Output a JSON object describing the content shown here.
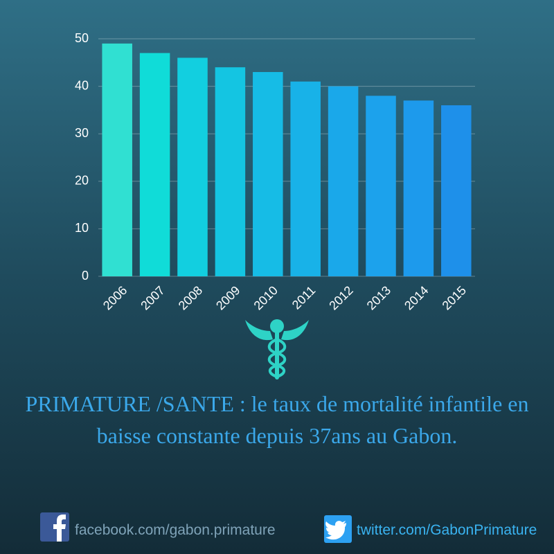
{
  "chart_data": {
    "type": "bar",
    "categories": [
      "2006",
      "2007",
      "2008",
      "2009",
      "2010",
      "2011",
      "2012",
      "2013",
      "2014",
      "2015"
    ],
    "values": [
      49,
      47,
      46,
      44,
      43,
      41,
      40,
      38,
      37,
      36
    ],
    "colors": [
      "#30e0d2",
      "#10dcd8",
      "#12cfe0",
      "#14c5e2",
      "#16bce6",
      "#18b2e8",
      "#1aa8ea",
      "#1ca2ec",
      "#1d9aec",
      "#1e90ea"
    ],
    "ylim": [
      0,
      50
    ],
    "yticks": [
      0,
      10,
      20,
      30,
      40,
      50
    ],
    "grid": true
  },
  "caption": "PRIMATURE /SANTE : le taux de mortalité infantile en baisse constante depuis 37ans au Gabon.",
  "footer": {
    "facebook": "facebook.com/gabon.primature",
    "twitter": "twitter.com/GabonPrimature"
  }
}
